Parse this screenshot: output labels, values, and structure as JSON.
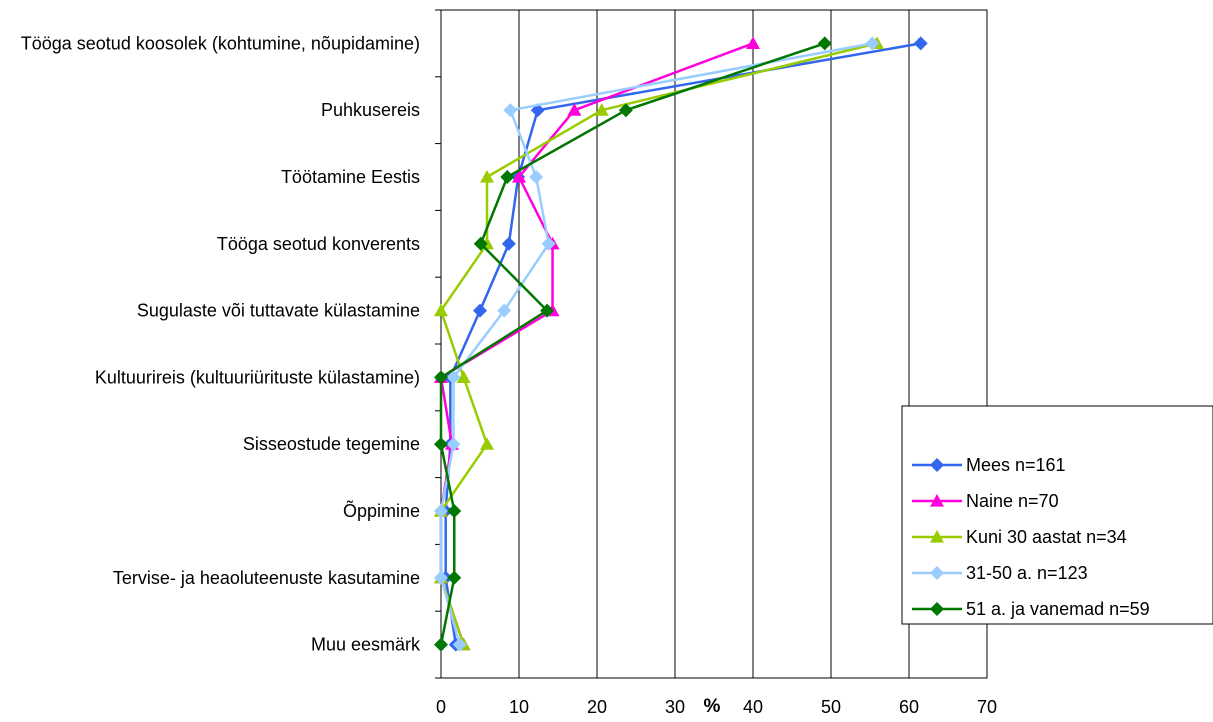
{
  "chart_data": {
    "type": "line",
    "orientation": "horizontal",
    "xlabel": "%",
    "xlim": [
      0,
      70
    ],
    "x_ticks": [
      "0",
      "10",
      "20",
      "30",
      "40",
      "50",
      "60",
      "70"
    ],
    "grid": "vertical",
    "legend_position": "right",
    "categories": [
      "Tööga seotud koosolek (kohtumine, nõupidamine)",
      "Puhkusereis",
      "Töötamine Eestis",
      "Tööga seotud konverents",
      "Sugulaste või tuttavate külastamine",
      "Kultuurireis (kultuuriürituste külastamine)",
      "Sisseostude tegemine",
      "Õppimine",
      "Tervise- ja heaoluteenuste kasutamine",
      "Muu eesmärk"
    ],
    "series": [
      {
        "name": "Mees n=161",
        "color": "#3366ee",
        "marker": "diamond",
        "values": [
          61.5,
          12.4,
          9.9,
          8.7,
          5.0,
          1.2,
          1.2,
          0.6,
          0.6,
          1.9
        ]
      },
      {
        "name": "Naine n=70",
        "color": "#ff00dd",
        "marker": "triangle",
        "values": [
          40.0,
          17.1,
          10.0,
          14.3,
          14.3,
          0.0,
          1.4,
          0.0,
          0.0,
          2.9
        ]
      },
      {
        "name": "Kuni 30 aastat n=34",
        "color": "#99cc00",
        "marker": "triangle",
        "values": [
          55.9,
          20.6,
          5.9,
          5.9,
          0.0,
          2.9,
          5.9,
          0.0,
          0.0,
          2.9
        ]
      },
      {
        "name": "31-50 a. n=123",
        "color": "#99ccff",
        "marker": "diamond",
        "values": [
          55.3,
          8.9,
          12.2,
          13.8,
          8.1,
          1.6,
          1.6,
          0.0,
          0.0,
          2.4
        ]
      },
      {
        "name": "51 a. ja vanemad n=59",
        "color": "#007700",
        "marker": "diamond",
        "values": [
          49.2,
          23.7,
          8.5,
          5.1,
          13.6,
          0.0,
          0.0,
          1.7,
          1.7,
          0.0
        ]
      }
    ]
  }
}
